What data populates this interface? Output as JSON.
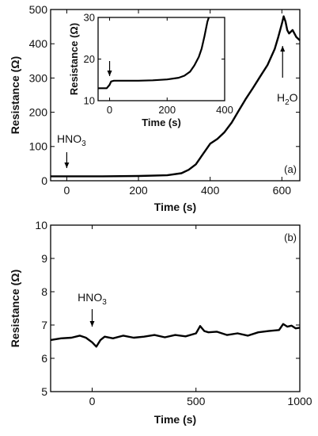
{
  "chart_data": [
    {
      "type": "line",
      "panel": "(a)",
      "xlabel": "Time (s)",
      "ylabel": "Resistance (Ω)",
      "xlim": [
        -45,
        650
      ],
      "ylim": [
        0,
        500
      ],
      "xticks": [
        0,
        200,
        400,
        600
      ],
      "yticks": [
        0,
        100,
        200,
        300,
        400,
        500
      ],
      "x": [
        -45,
        0,
        100,
        200,
        280,
        320,
        340,
        360,
        380,
        400,
        420,
        440,
        460,
        480,
        500,
        520,
        540,
        560,
        580,
        590,
        600,
        605,
        610,
        615,
        620,
        630,
        640,
        650
      ],
      "y": [
        13,
        13,
        13,
        14,
        16,
        22,
        32,
        48,
        78,
        108,
        122,
        142,
        170,
        205,
        240,
        272,
        305,
        338,
        385,
        420,
        458,
        480,
        465,
        440,
        430,
        440,
        420,
        410
      ],
      "annotations": [
        {
          "text": "HNO",
          "sub": "3",
          "x": 0,
          "y": 30
        },
        {
          "text": "H",
          "sub": "2",
          "tail": "O",
          "x": 602,
          "y": 400
        }
      ],
      "inset": {
        "xlabel": "Time (s)",
        "ylabel": "Resistance (Ω)",
        "xlim": [
          -40,
          400
        ],
        "ylim": [
          10,
          30
        ],
        "xticks": [
          0,
          200,
          400
        ],
        "yticks": [
          10,
          20,
          30
        ],
        "x": [
          -40,
          -10,
          0,
          5,
          15,
          50,
          100,
          150,
          200,
          240,
          260,
          280,
          295,
          310,
          320,
          330,
          340,
          345
        ],
        "y": [
          13,
          13,
          13.8,
          14.6,
          14.8,
          14.8,
          14.8,
          14.9,
          15.1,
          15.5,
          16,
          17,
          18.5,
          20.5,
          22.5,
          25.5,
          29,
          30
        ],
        "annotations": [
          {
            "x": 0,
            "y": 15
          }
        ]
      }
    },
    {
      "type": "line",
      "panel": "(b)",
      "xlabel": "Time (s)",
      "ylabel": "Resistance (Ω)",
      "xlim": [
        -200,
        1000
      ],
      "ylim": [
        5,
        10
      ],
      "xticks": [
        0,
        500,
        1000
      ],
      "yticks": [
        5,
        6,
        7,
        8,
        9,
        10
      ],
      "x": [
        -200,
        -150,
        -100,
        -60,
        -30,
        0,
        20,
        40,
        60,
        100,
        150,
        200,
        250,
        300,
        350,
        400,
        450,
        500,
        520,
        540,
        560,
        600,
        650,
        700,
        750,
        800,
        850,
        900,
        920,
        940,
        960,
        980,
        1000
      ],
      "y": [
        6.55,
        6.6,
        6.62,
        6.68,
        6.62,
        6.48,
        6.35,
        6.55,
        6.65,
        6.6,
        6.68,
        6.62,
        6.65,
        6.7,
        6.63,
        6.7,
        6.66,
        6.75,
        6.97,
        6.82,
        6.78,
        6.8,
        6.7,
        6.75,
        6.68,
        6.78,
        6.82,
        6.85,
        7.03,
        6.95,
        6.98,
        6.9,
        6.92
      ],
      "annotations": [
        {
          "text": "HNO",
          "sub": "3",
          "x": 0,
          "y": 6.6
        }
      ]
    }
  ]
}
